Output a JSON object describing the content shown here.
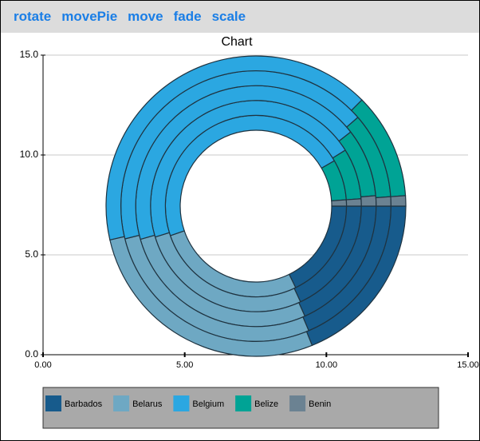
{
  "toolbar": {
    "buttons": [
      "rotate",
      "movePie",
      "move",
      "fade",
      "scale"
    ]
  },
  "chart_data": {
    "type": "pie",
    "title": "Chart",
    "xlim": [
      0,
      15
    ],
    "xticks": [
      {
        "value": 0,
        "label": "0.00"
      },
      {
        "value": 5,
        "label": "5.00"
      },
      {
        "value": 10,
        "label": "10.00"
      },
      {
        "value": 15,
        "label": "15.00"
      }
    ],
    "ylim": [
      0,
      15
    ],
    "yticks": [
      {
        "value": 0,
        "label": "0.0"
      },
      {
        "value": 5,
        "label": "5.0"
      },
      {
        "value": 10,
        "label": "10.0"
      },
      {
        "value": 15,
        "label": "15.0"
      }
    ],
    "grid": true,
    "series": [
      {
        "name": "Barbados",
        "color": "#175b8c",
        "values": [
          64,
          65,
          66,
          67,
          68
        ]
      },
      {
        "name": "Belarus",
        "color": "#6ea8c3",
        "values": [
          97,
          98,
          98,
          99,
          99
        ]
      },
      {
        "name": "Belgium",
        "color": "#2ba7e1",
        "values": [
          169,
          165,
          158,
          153,
          148
        ]
      },
      {
        "name": "Belize",
        "color": "#00a395",
        "values": [
          26,
          28,
          33,
          37,
          41
        ]
      },
      {
        "name": "Benin",
        "color": "#6b8292",
        "values": [
          4,
          4,
          5,
          4,
          4
        ]
      }
    ]
  }
}
